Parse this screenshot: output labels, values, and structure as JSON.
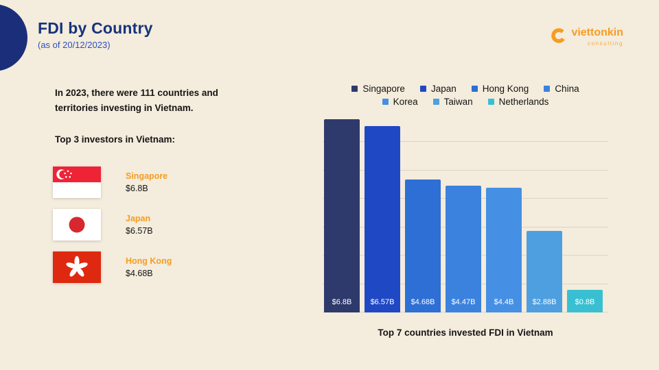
{
  "theme": {
    "background": "#f4ecdc",
    "title_color": "#17337d",
    "subtitle_color": "#2b4fc0",
    "accent_orange": "#f59d22",
    "text_color": "#141414",
    "gridline_color": "#ddd5c3",
    "corner_circle_color": "#1b2e7a"
  },
  "header": {
    "title": "FDI by Country",
    "subtitle": "(as of 20/12/2023)",
    "brand_name": "viettonkin",
    "brand_tagline": "consulting"
  },
  "left_panel": {
    "intro": "In 2023, there were 111 countries and territories investing in Vietnam.",
    "subheading": "Top 3 investors in Vietnam:",
    "investors": [
      {
        "country": "Singapore",
        "value": "$6.8B",
        "flag": "singapore-flag-icon"
      },
      {
        "country": "Japan",
        "value": "$6.57B",
        "flag": "japan-flag-icon"
      },
      {
        "country": "Hong Kong",
        "value": "$4.68B",
        "flag": "hong-kong-flag-icon"
      }
    ]
  },
  "chart_data": {
    "type": "bar",
    "title": "Top 7 countries invested FDI in Vietnam",
    "categories": [
      "Singapore",
      "Japan",
      "Hong Kong",
      "China",
      "Korea",
      "Taiwan",
      "Netherlands"
    ],
    "values": [
      6.8,
      6.57,
      4.68,
      4.47,
      4.4,
      2.88,
      0.8
    ],
    "bar_labels": [
      "$6.8B",
      "$6.57B",
      "$4.68B",
      "$4.47B",
      "$4.4B",
      "$2.88B",
      "$0.8B"
    ],
    "colors": [
      "#2e3a6b",
      "#1f48c4",
      "#2d6fd4",
      "#3b82de",
      "#4590e4",
      "#4e9fe0",
      "#38c0d2"
    ],
    "xlabel": "",
    "ylabel": "",
    "ylim": [
      0,
      7
    ],
    "grid": true,
    "legend_position": "top",
    "legend_split": 4
  }
}
